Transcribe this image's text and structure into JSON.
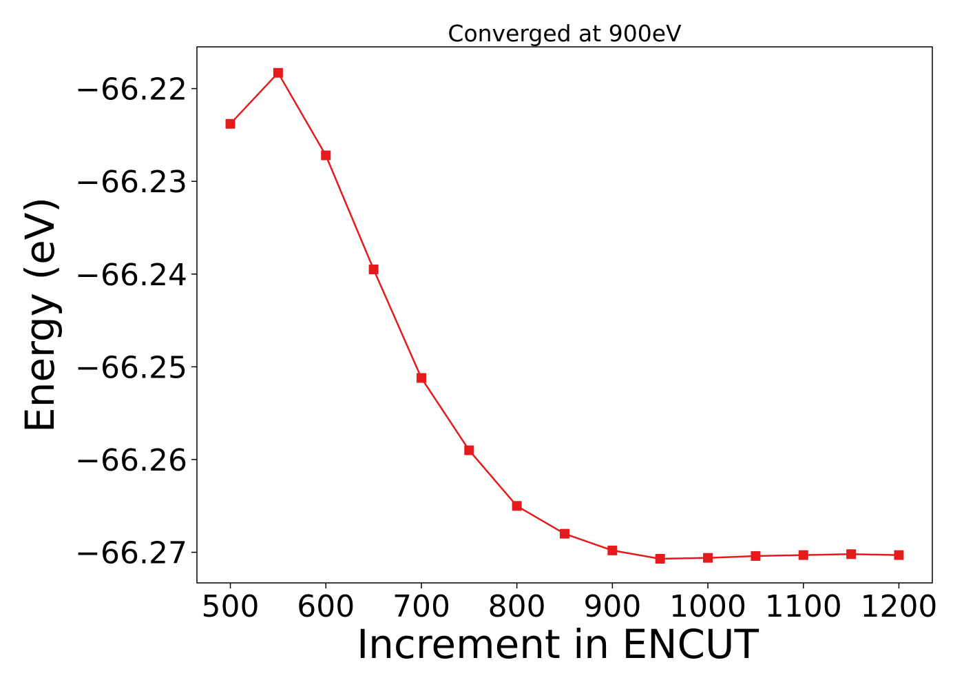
{
  "chart_data": {
    "type": "line",
    "title": "Converged at 900eV",
    "xlabel": "Increment in ENCUT",
    "ylabel": "Energy (eV)",
    "xlim": [
      465,
      1235
    ],
    "ylim": [
      -66.2733,
      -66.2155
    ],
    "xticks": [
      500,
      600,
      700,
      800,
      900,
      1000,
      1100,
      1200
    ],
    "yticks": [
      -66.22,
      -66.23,
      -66.24,
      -66.25,
      -66.26,
      -66.27
    ],
    "ytick_labels": [
      "−66.22",
      "−66.23",
      "−66.24",
      "−66.25",
      "−66.26",
      "−66.27"
    ],
    "grid": false,
    "legend": "none",
    "color": "#e41a1c",
    "marker": "square",
    "series": [
      {
        "x": [
          500,
          550,
          600,
          650,
          700,
          750,
          800,
          850,
          900,
          950,
          1000,
          1050,
          1100,
          1150,
          1200
        ],
        "values": [
          -66.2238,
          -66.2183,
          -66.2272,
          -66.2395,
          -66.2512,
          -66.259,
          -66.265,
          -66.268,
          -66.2698,
          -66.2707,
          -66.2706,
          -66.2704,
          -66.2703,
          -66.2702,
          -66.2703
        ]
      }
    ]
  }
}
